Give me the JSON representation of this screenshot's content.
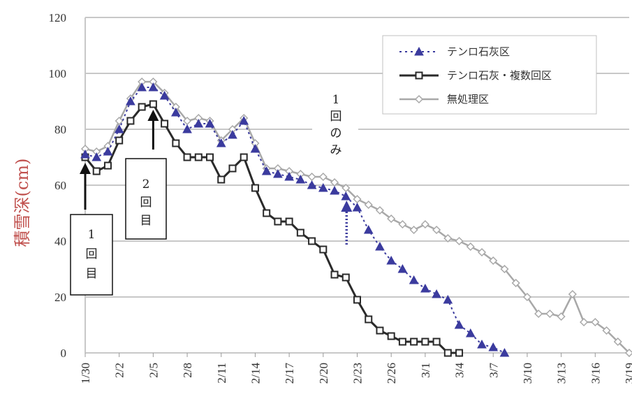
{
  "chart_data": {
    "type": "line",
    "ylabel": "積雪深(cm)",
    "ylim": [
      0,
      120
    ],
    "yticks": [
      "0",
      "20",
      "40",
      "60",
      "80",
      "100",
      "120"
    ],
    "xlim": [
      0,
      48
    ],
    "xticks": [
      {
        "x": 0,
        "label": "1/30"
      },
      {
        "x": 3,
        "label": "2/2"
      },
      {
        "x": 6,
        "label": "2/5"
      },
      {
        "x": 9,
        "label": "2/8"
      },
      {
        "x": 12,
        "label": "2/11"
      },
      {
        "x": 15,
        "label": "2/14"
      },
      {
        "x": 18,
        "label": "2/17"
      },
      {
        "x": 21,
        "label": "2/20"
      },
      {
        "x": 24,
        "label": "2/23"
      },
      {
        "x": 27,
        "label": "2/26"
      },
      {
        "x": 30,
        "label": "3/1"
      },
      {
        "x": 33,
        "label": "3/4"
      },
      {
        "x": 36,
        "label": "3/7"
      },
      {
        "x": 39,
        "label": "3/10"
      },
      {
        "x": 42,
        "label": "3/13"
      },
      {
        "x": 45,
        "label": "3/16"
      },
      {
        "x": 48,
        "label": "3/19"
      }
    ],
    "grid": "horizontal",
    "legend_position": "top-right",
    "series": [
      {
        "name": "テンロ石灰区",
        "color": "#3b3b9e",
        "marker": "triangle",
        "dashed": true,
        "x": [
          0,
          1,
          2,
          3,
          4,
          5,
          6,
          7,
          8,
          9,
          10,
          11,
          12,
          13,
          14,
          15,
          16,
          17,
          18,
          19,
          20,
          21,
          22,
          23,
          24,
          25,
          26,
          27,
          28,
          29,
          30,
          31,
          32,
          33,
          34,
          35,
          36,
          37
        ],
        "y": [
          71,
          70,
          72,
          80,
          90,
          95,
          95,
          92,
          86,
          80,
          82,
          82,
          75,
          78,
          83,
          73,
          65,
          64,
          63,
          62,
          60,
          59,
          58,
          56,
          52,
          44,
          38,
          33,
          30,
          26,
          23,
          21,
          19,
          10,
          7,
          3,
          2,
          0
        ]
      },
      {
        "name": "テンロ石灰・複数回区",
        "color": "#2a2a2a",
        "marker": "square",
        "dashed": false,
        "x": [
          0,
          1,
          2,
          3,
          4,
          5,
          6,
          7,
          8,
          9,
          10,
          11,
          12,
          13,
          14,
          15,
          16,
          17,
          18,
          19,
          20,
          21,
          22,
          23,
          24,
          25,
          26,
          27,
          28,
          29,
          30,
          31,
          32,
          33
        ],
        "y": [
          70,
          65,
          67,
          76,
          83,
          88,
          89,
          82,
          75,
          70,
          70,
          70,
          62,
          66,
          70,
          59,
          50,
          47,
          47,
          43,
          40,
          37,
          28,
          27,
          19,
          12,
          8,
          6,
          4,
          4,
          4,
          4,
          0,
          0
        ]
      },
      {
        "name": "無処理区",
        "color": "#a8a8a8",
        "marker": "diamond",
        "dashed": false,
        "x": [
          0,
          1,
          2,
          3,
          4,
          5,
          6,
          7,
          8,
          9,
          10,
          11,
          12,
          13,
          14,
          15,
          16,
          17,
          18,
          19,
          20,
          21,
          22,
          23,
          24,
          25,
          26,
          27,
          28,
          29,
          30,
          31,
          32,
          33,
          34,
          35,
          36,
          37,
          38,
          39,
          40,
          41,
          42,
          43,
          44,
          45,
          46,
          47,
          48
        ],
        "y": [
          73,
          72,
          74,
          83,
          91,
          97,
          97,
          93,
          88,
          83,
          84,
          83,
          76,
          80,
          84,
          75,
          66,
          66,
          65,
          64,
          63,
          63,
          61,
          59,
          55,
          53,
          51,
          48,
          46,
          44,
          46,
          44,
          41,
          40,
          38,
          36,
          33,
          30,
          25,
          20,
          14,
          14,
          13,
          21,
          11,
          11,
          8,
          4,
          0
        ]
      }
    ],
    "annotations": [
      {
        "text": [
          "1",
          "回",
          "目"
        ],
        "arrow_x": 0,
        "arrow_y": 70,
        "style": "solid"
      },
      {
        "text": [
          "2",
          "回",
          "目"
        ],
        "arrow_x": 6,
        "arrow_y": 89,
        "style": "solid"
      },
      {
        "text": [
          "1",
          "回",
          "の",
          "み"
        ],
        "arrow_x": 23,
        "arrow_y": 57,
        "style": "dotted"
      }
    ]
  }
}
